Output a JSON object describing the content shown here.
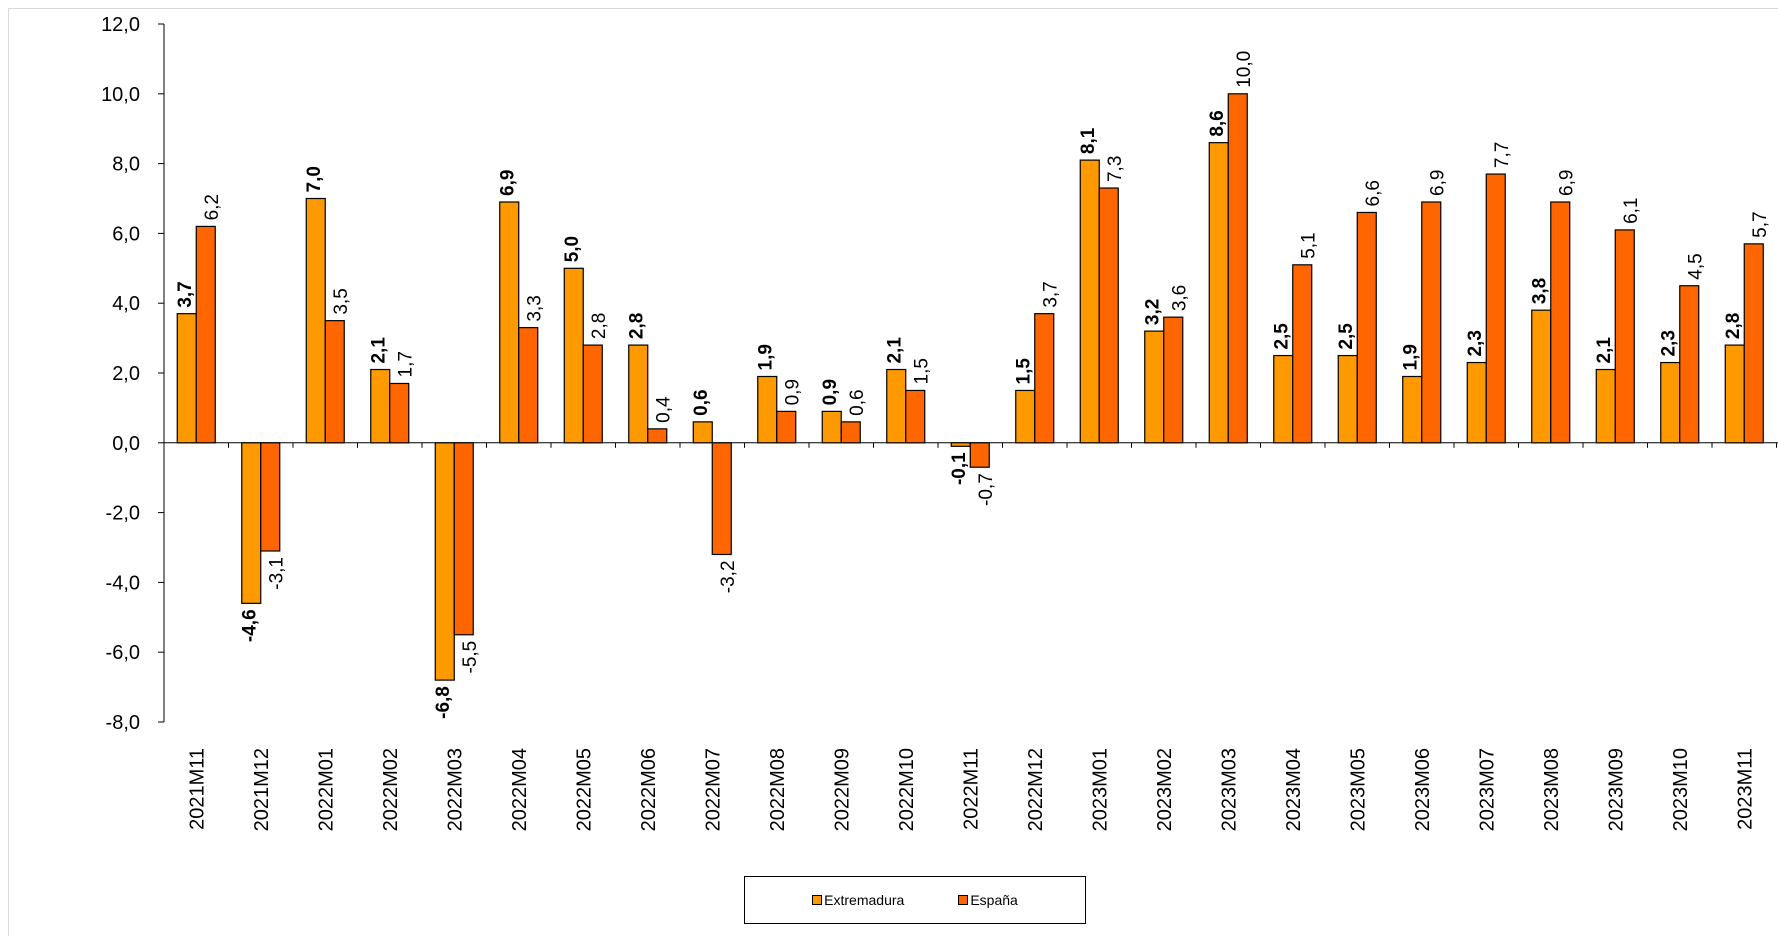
{
  "chart_data": {
    "type": "bar",
    "title": "",
    "xlabel": "",
    "ylabel": "",
    "ylim": [
      -8,
      12
    ],
    "yticks": [
      "12,0",
      "10,0",
      "8,0",
      "6,0",
      "4,0",
      "2,0",
      "0,0",
      "-2,0",
      "-4,0",
      "-6,0",
      "-8,0"
    ],
    "grid": false,
    "legend_position": "bottom",
    "categories": [
      "2021M11",
      "2021M12",
      "2022M01",
      "2022M02",
      "2022M03",
      "2022M04",
      "2022M05",
      "2022M06",
      "2022M07",
      "2022M08",
      "2022M09",
      "2022M10",
      "2022M11",
      "2022M12",
      "2023M01",
      "2023M02",
      "2023M03",
      "2023M04",
      "2023M05",
      "2023M06",
      "2023M07",
      "2023M08",
      "2023M09",
      "2023M10",
      "2023M11"
    ],
    "series": [
      {
        "name": "Extremadura",
        "color": "#FF9900",
        "values": [
          3.7,
          -4.6,
          7.0,
          2.1,
          -6.8,
          6.9,
          5.0,
          2.8,
          0.6,
          1.9,
          0.9,
          2.1,
          -0.1,
          1.5,
          8.1,
          3.2,
          8.6,
          2.5,
          2.5,
          1.9,
          2.3,
          3.8,
          2.1,
          2.3,
          2.8
        ],
        "labels": [
          "3,7",
          "-4,6",
          "7,0",
          "2,1",
          "-6,8",
          "6,9",
          "5,0",
          "2,8",
          "0,6",
          "1,9",
          "0,9",
          "2,1",
          "-0,1",
          "1,5",
          "8,1",
          "3,2",
          "8,6",
          "2,5",
          "2,5",
          "1,9",
          "2,3",
          "3,8",
          "2,1",
          "2,3",
          "2,8"
        ]
      },
      {
        "name": "España",
        "color": "#FF6600",
        "values": [
          6.2,
          -3.1,
          3.5,
          1.7,
          -5.5,
          3.3,
          2.8,
          0.4,
          -3.2,
          0.9,
          0.6,
          1.5,
          -0.7,
          3.7,
          7.3,
          3.6,
          10.0,
          5.1,
          6.6,
          6.9,
          7.7,
          6.9,
          6.1,
          4.5,
          5.7
        ],
        "labels": [
          "6,2",
          "-3,1",
          "3,5",
          "1,7",
          "-5,5",
          "3,3",
          "2,8",
          "0,4",
          "-3,2",
          "0,9",
          "0,6",
          "1,5",
          "-0,7",
          "3,7",
          "7,3",
          "3,6",
          "10,0",
          "5,1",
          "6,6",
          "6,9",
          "7,7",
          "6,9",
          "6,1",
          "4,5",
          "5,7"
        ]
      }
    ]
  }
}
